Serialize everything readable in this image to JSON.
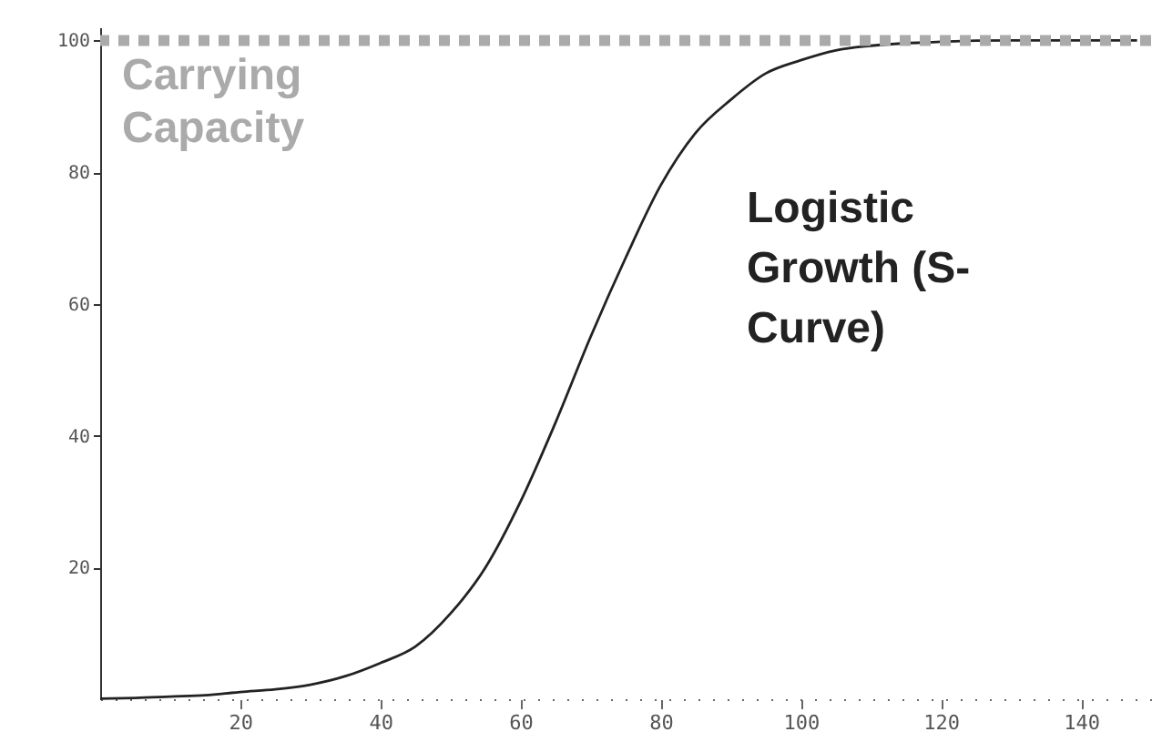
{
  "chart_data": {
    "type": "line",
    "x": [
      0,
      5,
      10,
      15,
      20,
      25,
      30,
      35,
      40,
      45,
      50,
      55,
      60,
      65,
      70,
      75,
      80,
      85,
      90,
      95,
      100,
      105,
      110,
      120,
      130,
      140,
      148
    ],
    "series": [
      {
        "color": "#222222",
        "values": [
          0.1,
          0.2,
          0.4,
          0.6,
          1.1,
          1.5,
          2.2,
          3.5,
          5.5,
          8,
          13,
          20,
          30,
          42,
          55,
          67,
          78,
          86,
          91,
          95,
          97,
          98.5,
          99.2,
          99.8,
          100,
          100,
          100
        ]
      }
    ],
    "xlim": [
      0,
      150
    ],
    "xticks": [
      20,
      40,
      60,
      80,
      100,
      120,
      140
    ],
    "ylim": [
      0,
      102
    ],
    "yticks": [
      20,
      40,
      60,
      80,
      100
    ],
    "ref_lines": [
      {
        "axis": "y",
        "value": 100,
        "label": "Carrying Capacity",
        "color": "#aaaaaa",
        "line_style": "dotted"
      }
    ],
    "annotations": [
      "Logistic Growth (S-Curve)"
    ]
  }
}
